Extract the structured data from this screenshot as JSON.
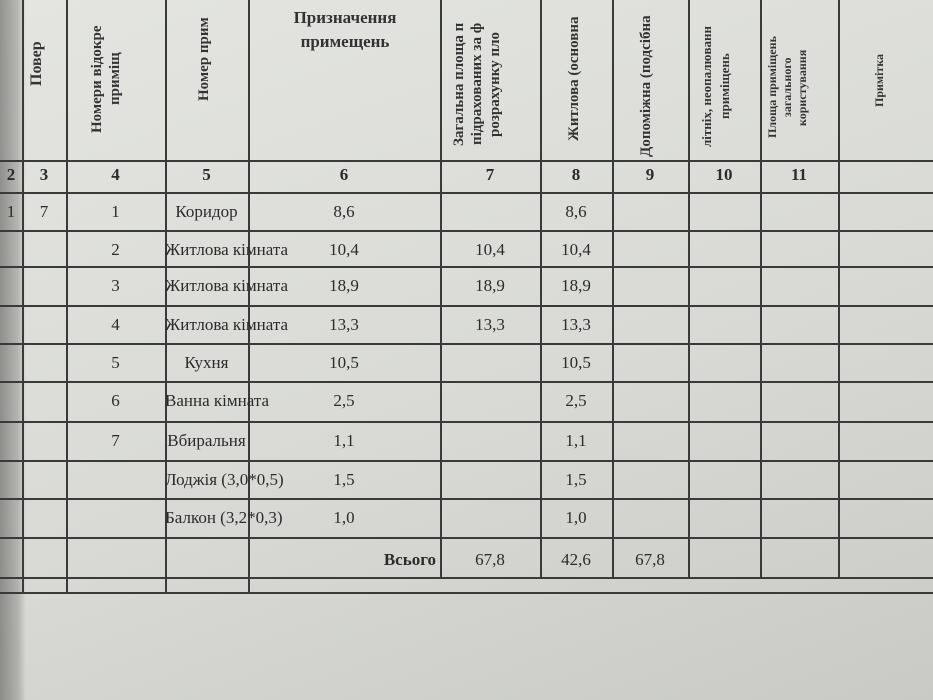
{
  "header": {
    "col1": "Повер",
    "col3": [
      "Номери відокре",
      "приміщ"
    ],
    "col4": "Номер прим",
    "col5": [
      "Призначення",
      "примещень"
    ],
    "col6": [
      "Загальна площа п",
      "підрахованих за ф",
      "розрахунку пло"
    ],
    "col7": "Житлова (основна",
    "col8": "Допоміжна (подсібна",
    "col9": [
      "літніх, неопалюванн",
      "приміщень"
    ],
    "col10": [
      "Площа приміщень",
      "загального",
      "користування"
    ],
    "col11": "Примітка"
  },
  "column_numbers": [
    "2",
    "3",
    "4",
    "5",
    "6",
    "7",
    "8",
    "9",
    "10",
    "11"
  ],
  "rows": [
    {
      "floor": "1",
      "apt": "7",
      "num": "1",
      "name": "Коридор",
      "total": "8,6",
      "living": "",
      "aux": "8,6"
    },
    {
      "floor": "",
      "apt": "",
      "num": "2",
      "name": "Житлова кімната",
      "total": "10,4",
      "living": "10,4",
      "aux": "10,4"
    },
    {
      "floor": "",
      "apt": "",
      "num": "3",
      "name": "Житлова кімната",
      "total": "18,9",
      "living": "18,9",
      "aux": "18,9"
    },
    {
      "floor": "",
      "apt": "",
      "num": "4",
      "name": "Житлова кімната",
      "total": "13,3",
      "living": "13,3",
      "aux": "13,3"
    },
    {
      "floor": "",
      "apt": "",
      "num": "5",
      "name": "Кухня",
      "total": "10,5",
      "living": "",
      "aux": "10,5"
    },
    {
      "floor": "",
      "apt": "",
      "num": "6",
      "name": "Ванна кімната",
      "total": "2,5",
      "living": "",
      "aux": "2,5"
    },
    {
      "floor": "",
      "apt": "",
      "num": "7",
      "name": "Вбиральня",
      "total": "1,1",
      "living": "",
      "aux": "1,1"
    },
    {
      "floor": "",
      "apt": "",
      "num": "",
      "name": "Лоджія (3,0*0,5)",
      "total": "1,5",
      "living": "",
      "aux": "1,5"
    },
    {
      "floor": "",
      "apt": "",
      "num": "",
      "name": "Балкон (3,2*0,3)",
      "total": "1,0",
      "living": "",
      "aux": "1,0"
    }
  ],
  "total": {
    "label": "Всього",
    "total": "67,8",
    "living": "42,6",
    "aux": "67,8"
  }
}
